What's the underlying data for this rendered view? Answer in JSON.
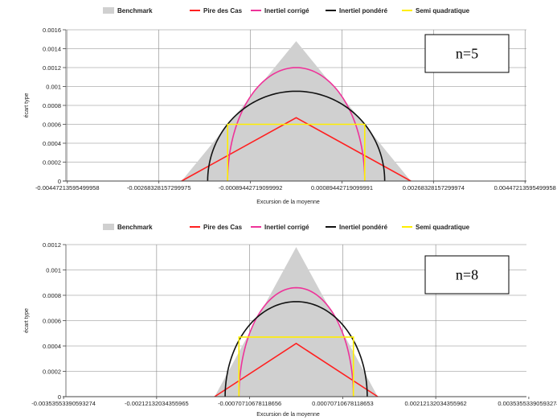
{
  "legend": [
    {
      "name": "Benchmark",
      "color": "#d0d0d0",
      "kind": "area"
    },
    {
      "name": "Pire des Cas",
      "color": "#ff2020",
      "kind": "line"
    },
    {
      "name": "Inertiel corrigé",
      "color": "#ee3399",
      "kind": "line"
    },
    {
      "name": "Inertiel pondéré",
      "color": "#111111",
      "kind": "line"
    },
    {
      "name": "Semi quadratique",
      "color": "#ffee00",
      "kind": "line"
    }
  ],
  "chart_data": [
    {
      "type": "area",
      "annotation": "n=5",
      "xlabel": "Excursion de la moyenne",
      "ylabel": "écart type",
      "xlim": [
        -0.0045,
        0.0045
      ],
      "ylim": [
        0,
        0.0016
      ],
      "x_tick_values": [
        -0.00447213595499958,
        -0.00268328157299975,
        -0.00089442719099992,
        0.00089442719099992,
        0.00268328157299974,
        0.00447213595499958
      ],
      "x_tick_labels": [
        "-0.00447213595499958",
        "-0.00268328157299975",
        "-0.00089442719099992",
        "0.00089442719099991",
        "0.00268328157299974",
        "0.00447213595499958"
      ],
      "y_ticks": [
        "0",
        "0.0002",
        "0.0004",
        "0.0006",
        "0.0008",
        "0.001",
        "0.0012",
        "0.0014",
        "0.0016"
      ],
      "y_tick_values": [
        0,
        0.0002,
        0.0004,
        0.0006,
        0.0008,
        0.001,
        0.0012,
        0.0014,
        0.0016
      ],
      "series": [
        {
          "name": "Benchmark",
          "shape": "triangle",
          "half_width": 0.00224,
          "peak": 0.00148
        },
        {
          "name": "Pire des Cas",
          "shape": "triangle",
          "half_width": 0.00224,
          "peak": 0.00067
        },
        {
          "name": "Inertiel corrigé",
          "shape": "ellipse",
          "half_width": 0.00134,
          "peak": 0.0012
        },
        {
          "name": "Inertiel pondéré",
          "shape": "ellipse",
          "half_width": 0.00173,
          "peak": 0.00095
        },
        {
          "name": "Semi quadratique",
          "shape": "rectangle",
          "half_width": 0.00134,
          "peak": 0.0006
        }
      ]
    },
    {
      "type": "area",
      "annotation": "n=8",
      "xlabel": "Excursion de la moyenne",
      "ylabel": "écart type",
      "xlim": [
        -0.0035,
        0.0035
      ],
      "ylim": [
        0,
        0.0012
      ],
      "x_tick_values": [
        -0.00353553390593274,
        -0.00212132034355965,
        -0.00070710678118656,
        0.00070710678118653,
        0.00212132034355962,
        0.00353553390593274
      ],
      "x_tick_labels": [
        "-0.00353553390593274",
        "-0.00212132034355965",
        "-0.00070710678118656",
        "0.00070710678118653",
        "0.00212132034355962",
        "0.00353553390593274"
      ],
      "y_ticks": [
        "0",
        "0.0002",
        "0.0004",
        "0.0006",
        "0.0008",
        "0.001",
        "0.0012"
      ],
      "y_tick_values": [
        0,
        0.0002,
        0.0004,
        0.0006,
        0.0008,
        0.001,
        0.0012
      ],
      "series": [
        {
          "name": "Benchmark",
          "shape": "triangle",
          "half_width": 0.00124,
          "peak": 0.00118
        },
        {
          "name": "Pire des Cas",
          "shape": "triangle",
          "half_width": 0.00124,
          "peak": 0.00042
        },
        {
          "name": "Inertiel corrigé",
          "shape": "ellipse",
          "half_width": 0.00087,
          "peak": 0.00086
        },
        {
          "name": "Inertiel pondéré",
          "shape": "ellipse",
          "half_width": 0.00108,
          "peak": 0.00075
        },
        {
          "name": "Semi quadratique",
          "shape": "rectangle",
          "half_width": 0.00087,
          "peak": 0.00047
        }
      ]
    }
  ]
}
